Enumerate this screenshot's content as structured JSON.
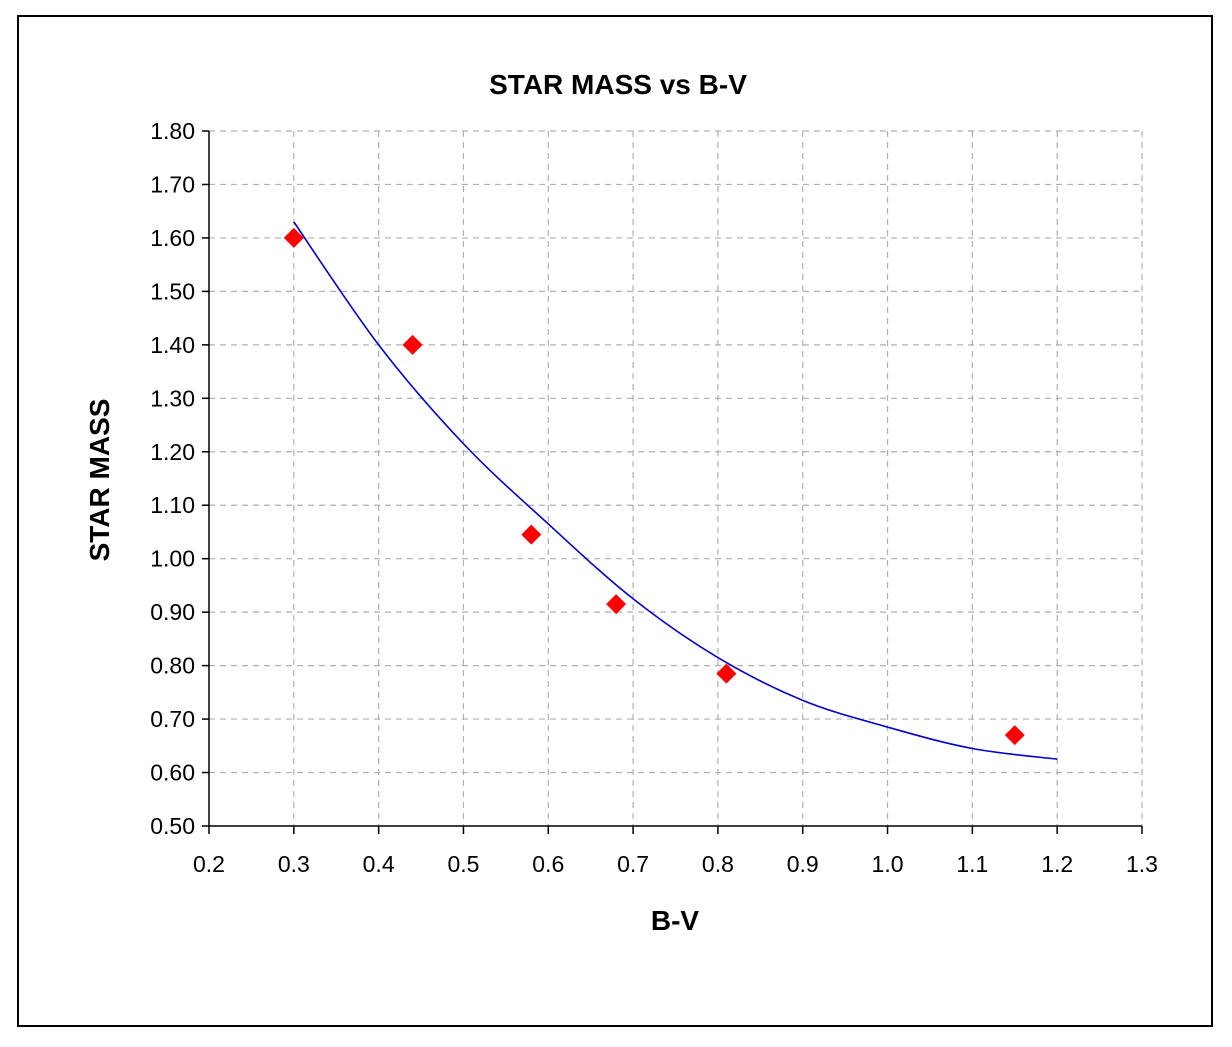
{
  "chart_data": {
    "type": "scatter",
    "title": "STAR MASS vs B-V",
    "xlabel": "B-V",
    "ylabel": "STAR MASS",
    "xlim": [
      0.2,
      1.3
    ],
    "ylim": [
      0.5,
      1.8
    ],
    "x_ticks": [
      "0.2",
      "0.3",
      "0.4",
      "0.5",
      "0.6",
      "0.7",
      "0.8",
      "0.9",
      "1.0",
      "1.1",
      "1.2",
      "1.3"
    ],
    "y_ticks": [
      "0.50",
      "0.60",
      "0.70",
      "0.80",
      "0.90",
      "1.00",
      "1.10",
      "1.20",
      "1.30",
      "1.40",
      "1.50",
      "1.60",
      "1.70",
      "1.80"
    ],
    "grid": true,
    "legend": "none",
    "series": [
      {
        "kind": "points",
        "marker": "diamond",
        "color": "#ff0000",
        "x": [
          0.3,
          0.44,
          0.58,
          0.68,
          0.81,
          1.15
        ],
        "y": [
          1.6,
          1.4,
          1.045,
          0.915,
          0.785,
          0.67
        ]
      },
      {
        "kind": "trendline",
        "color": "#0000cc",
        "x": [
          0.3,
          0.4,
          0.5,
          0.6,
          0.7,
          0.8,
          0.9,
          1.0,
          1.1,
          1.2
        ],
        "y": [
          1.63,
          1.4,
          1.215,
          1.065,
          0.925,
          0.815,
          0.735,
          0.685,
          0.645,
          0.625
        ]
      }
    ]
  }
}
